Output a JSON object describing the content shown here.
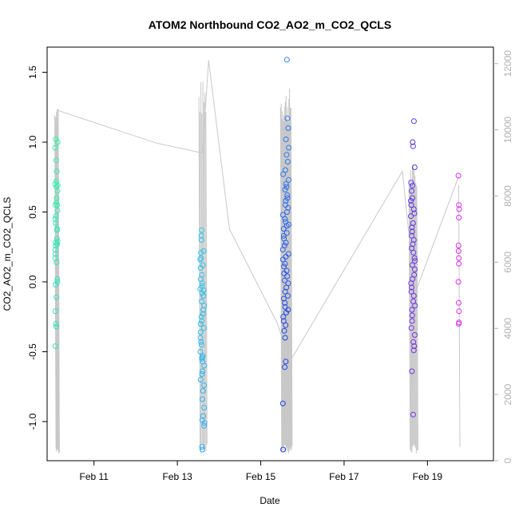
{
  "chart_data": {
    "type": "scatter",
    "title": "ATOM2 Northbound CO2_AO2_m_CO2_QCLS",
    "xlabel": "Date",
    "ylabel": "CO2_AO2_m_CO2_QCLS",
    "xlim": [
      "2016-02-09 21:00",
      "2016-02-20 14:00"
    ],
    "ylim": [
      -1.28,
      1.68
    ],
    "x_ticks": [
      {
        "date": "2016-02-11",
        "label": "Feb 11"
      },
      {
        "date": "2016-02-13",
        "label": "Feb 13"
      },
      {
        "date": "2016-02-15",
        "label": "Feb 15"
      },
      {
        "date": "2016-02-17",
        "label": "Feb 17"
      },
      {
        "date": "2016-02-19",
        "label": "Feb 19"
      }
    ],
    "y_ticks": [
      -1.0,
      -0.5,
      0.0,
      0.5,
      1.0,
      1.5
    ],
    "y_tick_labels": [
      "-1.0",
      "-0.5",
      "0.0",
      "0.5",
      "1.0",
      "1.5"
    ],
    "y2lim": [
      0,
      12500
    ],
    "y2_ticks": [
      0,
      2000,
      4000,
      6000,
      8000,
      10000,
      12000
    ],
    "y2_tick_labels": [
      "0",
      "2000",
      "4000",
      "6000",
      "8000",
      "10000",
      "12000"
    ],
    "grid": false,
    "legend": "none",
    "colors": {
      "altitude_line": "#c8c8c8",
      "right_axis": "#b0b0b0",
      "points_start": "#33ffa8",
      "points_mid": "#1e6ff0",
      "points_end": "#e02ef0"
    },
    "scatter_groups": [
      {
        "center": "2016-02-10 02:24",
        "spread_hours": 1.5,
        "color_start": "#2ef5a9",
        "color_end": "#33e0c0",
        "values": [
          1.02,
          1.0,
          0.96,
          0.87,
          0.79,
          0.72,
          0.7,
          0.69,
          0.68,
          0.65,
          0.6,
          0.57,
          0.55,
          0.55,
          0.51,
          0.47,
          0.45,
          0.42,
          0.38,
          0.37,
          0.31,
          0.29,
          0.28,
          0.27,
          0.26,
          0.23,
          0.2,
          0.17,
          0.14,
          0.02,
          0.0,
          -0.02,
          -0.11,
          -0.21,
          -0.3,
          -0.32,
          -0.46
        ]
      },
      {
        "center": "2016-02-13 14:24",
        "spread_hours": 2.5,
        "color_start": "#2ec8e8",
        "color_end": "#2eb0f0",
        "values": [
          0.37,
          0.33,
          0.3,
          0.22,
          0.21,
          0.17,
          0.16,
          0.12,
          0.1,
          0.05,
          0.02,
          -0.01,
          -0.03,
          -0.05,
          -0.06,
          -0.08,
          -0.1,
          -0.14,
          -0.17,
          -0.2,
          -0.23,
          -0.25,
          -0.28,
          -0.3,
          -0.33,
          -0.36,
          -0.4,
          -0.43,
          -0.45,
          -0.5,
          -0.53,
          -0.54,
          -0.55,
          -0.57,
          -0.6,
          -0.64,
          -0.66,
          -0.7,
          -0.74,
          -0.78,
          -0.84,
          -0.9,
          -0.96,
          -0.99,
          -1.01,
          -1.03,
          -1.18,
          -1.2
        ]
      },
      {
        "center": "2016-02-15 14:24",
        "spread_hours": 3.5,
        "color_start": "#2e7ef0",
        "color_end": "#2040e8",
        "values": [
          1.59,
          1.17,
          1.1,
          1.02,
          0.96,
          0.91,
          0.86,
          0.8,
          0.77,
          0.73,
          0.7,
          0.68,
          0.66,
          0.62,
          0.6,
          0.58,
          0.55,
          0.53,
          0.5,
          0.48,
          0.45,
          0.43,
          0.41,
          0.4,
          0.38,
          0.35,
          0.33,
          0.31,
          0.28,
          0.26,
          0.23,
          0.2,
          0.18,
          0.16,
          0.13,
          0.11,
          0.08,
          0.06,
          0.04,
          0.01,
          -0.01,
          -0.04,
          -0.07,
          -0.1,
          -0.12,
          -0.15,
          -0.18,
          -0.2,
          -0.22,
          -0.25,
          -0.28,
          -0.31,
          -0.35,
          -0.4,
          -0.57,
          -0.61,
          -0.87,
          -1.2
        ]
      },
      {
        "center": "2016-02-18 15:36",
        "spread_hours": 2.5,
        "color_start": "#5a36e0",
        "color_end": "#7a2ee6",
        "values": [
          1.15,
          1.0,
          0.97,
          0.82,
          0.71,
          0.69,
          0.65,
          0.6,
          0.58,
          0.55,
          0.52,
          0.49,
          0.47,
          0.42,
          0.39,
          0.36,
          0.33,
          0.3,
          0.27,
          0.24,
          0.21,
          0.17,
          0.15,
          0.12,
          0.09,
          0.05,
          0.02,
          -0.01,
          -0.04,
          -0.07,
          -0.1,
          -0.14,
          -0.17,
          -0.2,
          -0.24,
          -0.28,
          -0.33,
          -0.38,
          -0.43,
          -0.46,
          -0.49,
          -0.64,
          -0.95
        ]
      },
      {
        "center": "2016-02-19 18:00",
        "spread_hours": 0.5,
        "color_start": "#d62ef0",
        "color_end": "#e02ef0",
        "values": [
          0.76,
          0.55,
          0.52,
          0.46,
          0.26,
          0.22,
          0.17,
          0.13,
          0.0,
          -0.15,
          -0.21,
          -0.29,
          -0.3
        ]
      }
    ],
    "altitude_path": [
      [
        "2016-02-10 02:24",
        10600
      ],
      [
        "2016-02-12 12:00",
        9600
      ],
      [
        "2016-02-13 14:24",
        9300
      ],
      [
        "2016-02-13 18:00",
        12100
      ],
      [
        "2016-02-14 06:00",
        7000
      ],
      [
        "2016-02-15 09:36",
        4150
      ],
      [
        "2016-02-15 16:48",
        3000
      ],
      [
        "2016-02-18 09:36",
        8750
      ],
      [
        "2016-02-18 16:48",
        5050
      ],
      [
        "2016-02-19 18:00",
        8600
      ]
    ],
    "altitude_profiles": [
      {
        "center": "2016-02-10 02:24",
        "spread_hours": 2.0,
        "high": 11000,
        "low": 200,
        "count": 9
      },
      {
        "center": "2016-02-13 14:24",
        "spread_hours": 4.0,
        "high": 11500,
        "low": 200,
        "count": 8
      },
      {
        "center": "2016-02-15 14:24",
        "spread_hours": 6.0,
        "high": 11300,
        "low": 200,
        "count": 16
      },
      {
        "center": "2016-02-18 15:36",
        "spread_hours": 4.5,
        "high": 9000,
        "low": 200,
        "count": 10
      },
      {
        "center": "2016-02-19 18:00",
        "spread_hours": 0.5,
        "high": 8600,
        "low": 200,
        "count": 1
      }
    ]
  }
}
